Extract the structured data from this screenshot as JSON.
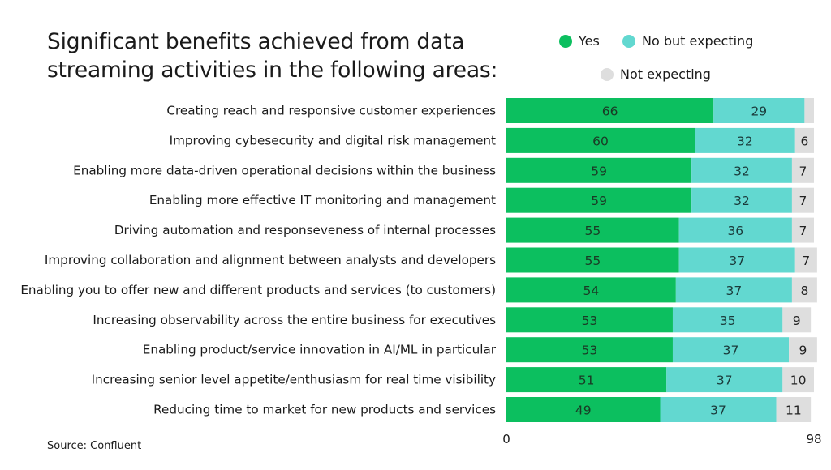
{
  "chart_data": {
    "type": "bar",
    "orientation": "horizontal",
    "stacked": true,
    "title": "Significant benefits achieved from data streaming activities in the following areas:",
    "title_lines": [
      "Significant benefits achieved from data",
      "streaming activities in the following areas:"
    ],
    "categories": [
      "Creating reach and responsive customer experiences",
      "Improving cybesecurity and digital risk management",
      "Enabling more data-driven operational decisions within the business",
      "Enabling more effective IT monitoring and management",
      "Driving automation and responseveness of internal processes",
      "Improving collaboration and alignment between analysts and developers",
      "Enabling you to offer new and different products and services (to customers)",
      "Increasing observability across the entire business for executives",
      "Enabling product/service innovation in AI/ML in particular",
      "Increasing senior level appetite/enthusiasm for real time visibility",
      "Reducing time to market for new products and services"
    ],
    "series": [
      {
        "name": "Yes",
        "color": "#0cbf5f",
        "values": [
          66,
          60,
          59,
          59,
          55,
          55,
          54,
          53,
          53,
          51,
          49
        ]
      },
      {
        "name": "No but expecting",
        "color": "#62d8d0",
        "values": [
          29,
          32,
          32,
          32,
          36,
          37,
          37,
          35,
          37,
          37,
          37
        ]
      },
      {
        "name": "Not expecting",
        "color": "#dedede",
        "values": [
          3,
          6,
          7,
          7,
          7,
          7,
          8,
          9,
          9,
          10,
          11
        ]
      }
    ],
    "value_labels_shown": [
      [
        66,
        29,
        null
      ],
      [
        60,
        32,
        6
      ],
      [
        59,
        32,
        7
      ],
      [
        59,
        32,
        7
      ],
      [
        55,
        36,
        7
      ],
      [
        55,
        37,
        7
      ],
      [
        54,
        37,
        8
      ],
      [
        53,
        35,
        9
      ],
      [
        53,
        37,
        9
      ],
      [
        51,
        37,
        10
      ],
      [
        49,
        37,
        11
      ]
    ],
    "xlim": [
      0,
      98
    ],
    "x_tick_labels": [
      "0",
      "98"
    ],
    "legend_position": "top-right",
    "grid": false,
    "xlabel": "",
    "ylabel": ""
  },
  "source": "Source: Confluent"
}
